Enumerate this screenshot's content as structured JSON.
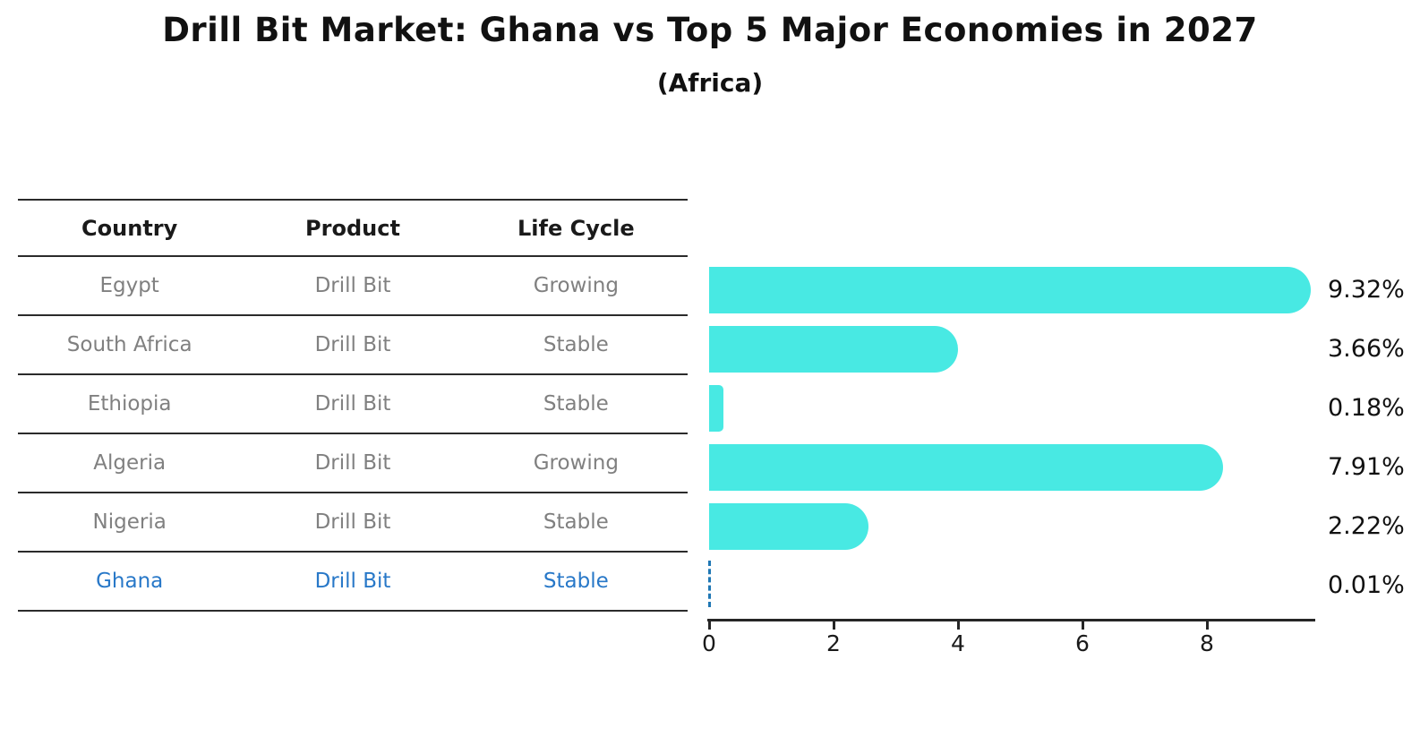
{
  "title": "Drill Bit Market: Ghana vs Top 5 Major Economies in 2027",
  "subtitle": "(Africa)",
  "table": {
    "headers": [
      "Country",
      "Product",
      "Life Cycle"
    ],
    "rows": [
      {
        "country": "Egypt",
        "product": "Drill Bit",
        "life_cycle": "Growing",
        "highlight": false
      },
      {
        "country": "South Africa",
        "product": "Drill Bit",
        "life_cycle": "Stable",
        "highlight": false
      },
      {
        "country": "Ethiopia",
        "product": "Drill Bit",
        "life_cycle": "Stable",
        "highlight": false
      },
      {
        "country": "Algeria",
        "product": "Drill Bit",
        "life_cycle": "Growing",
        "highlight": false
      },
      {
        "country": "Nigeria",
        "product": "Drill Bit",
        "life_cycle": "Stable",
        "highlight": false
      },
      {
        "country": "Ghana",
        "product": "Drill Bit",
        "life_cycle": "Stable",
        "highlight": true
      }
    ]
  },
  "chart_data": {
    "type": "bar",
    "orientation": "horizontal",
    "title": "Drill Bit Market: Ghana vs Top 5 Major Economies in 2027",
    "subtitle": "(Africa)",
    "categories": [
      "Egypt",
      "South Africa",
      "Ethiopia",
      "Algeria",
      "Nigeria",
      "Ghana"
    ],
    "values": [
      9.32,
      3.66,
      0.18,
      7.91,
      2.22,
      0.01
    ],
    "value_labels": [
      "9.32%",
      "3.66%",
      "0.18%",
      "7.91%",
      "2.22%",
      "0.01%"
    ],
    "x_ticks": [
      "0",
      "2",
      "4",
      "6",
      "8"
    ],
    "xlim": [
      0,
      9.73
    ],
    "grid": false,
    "legend": false,
    "highlight_index": 5,
    "highlight_bar_style": "dashed-outline",
    "bar_color": "#48E9E3",
    "highlight_text_color": "#2878C8",
    "highlight_dash_color": "#1F77B4",
    "axis_color": "#262626",
    "table_text_color": "#808080"
  }
}
